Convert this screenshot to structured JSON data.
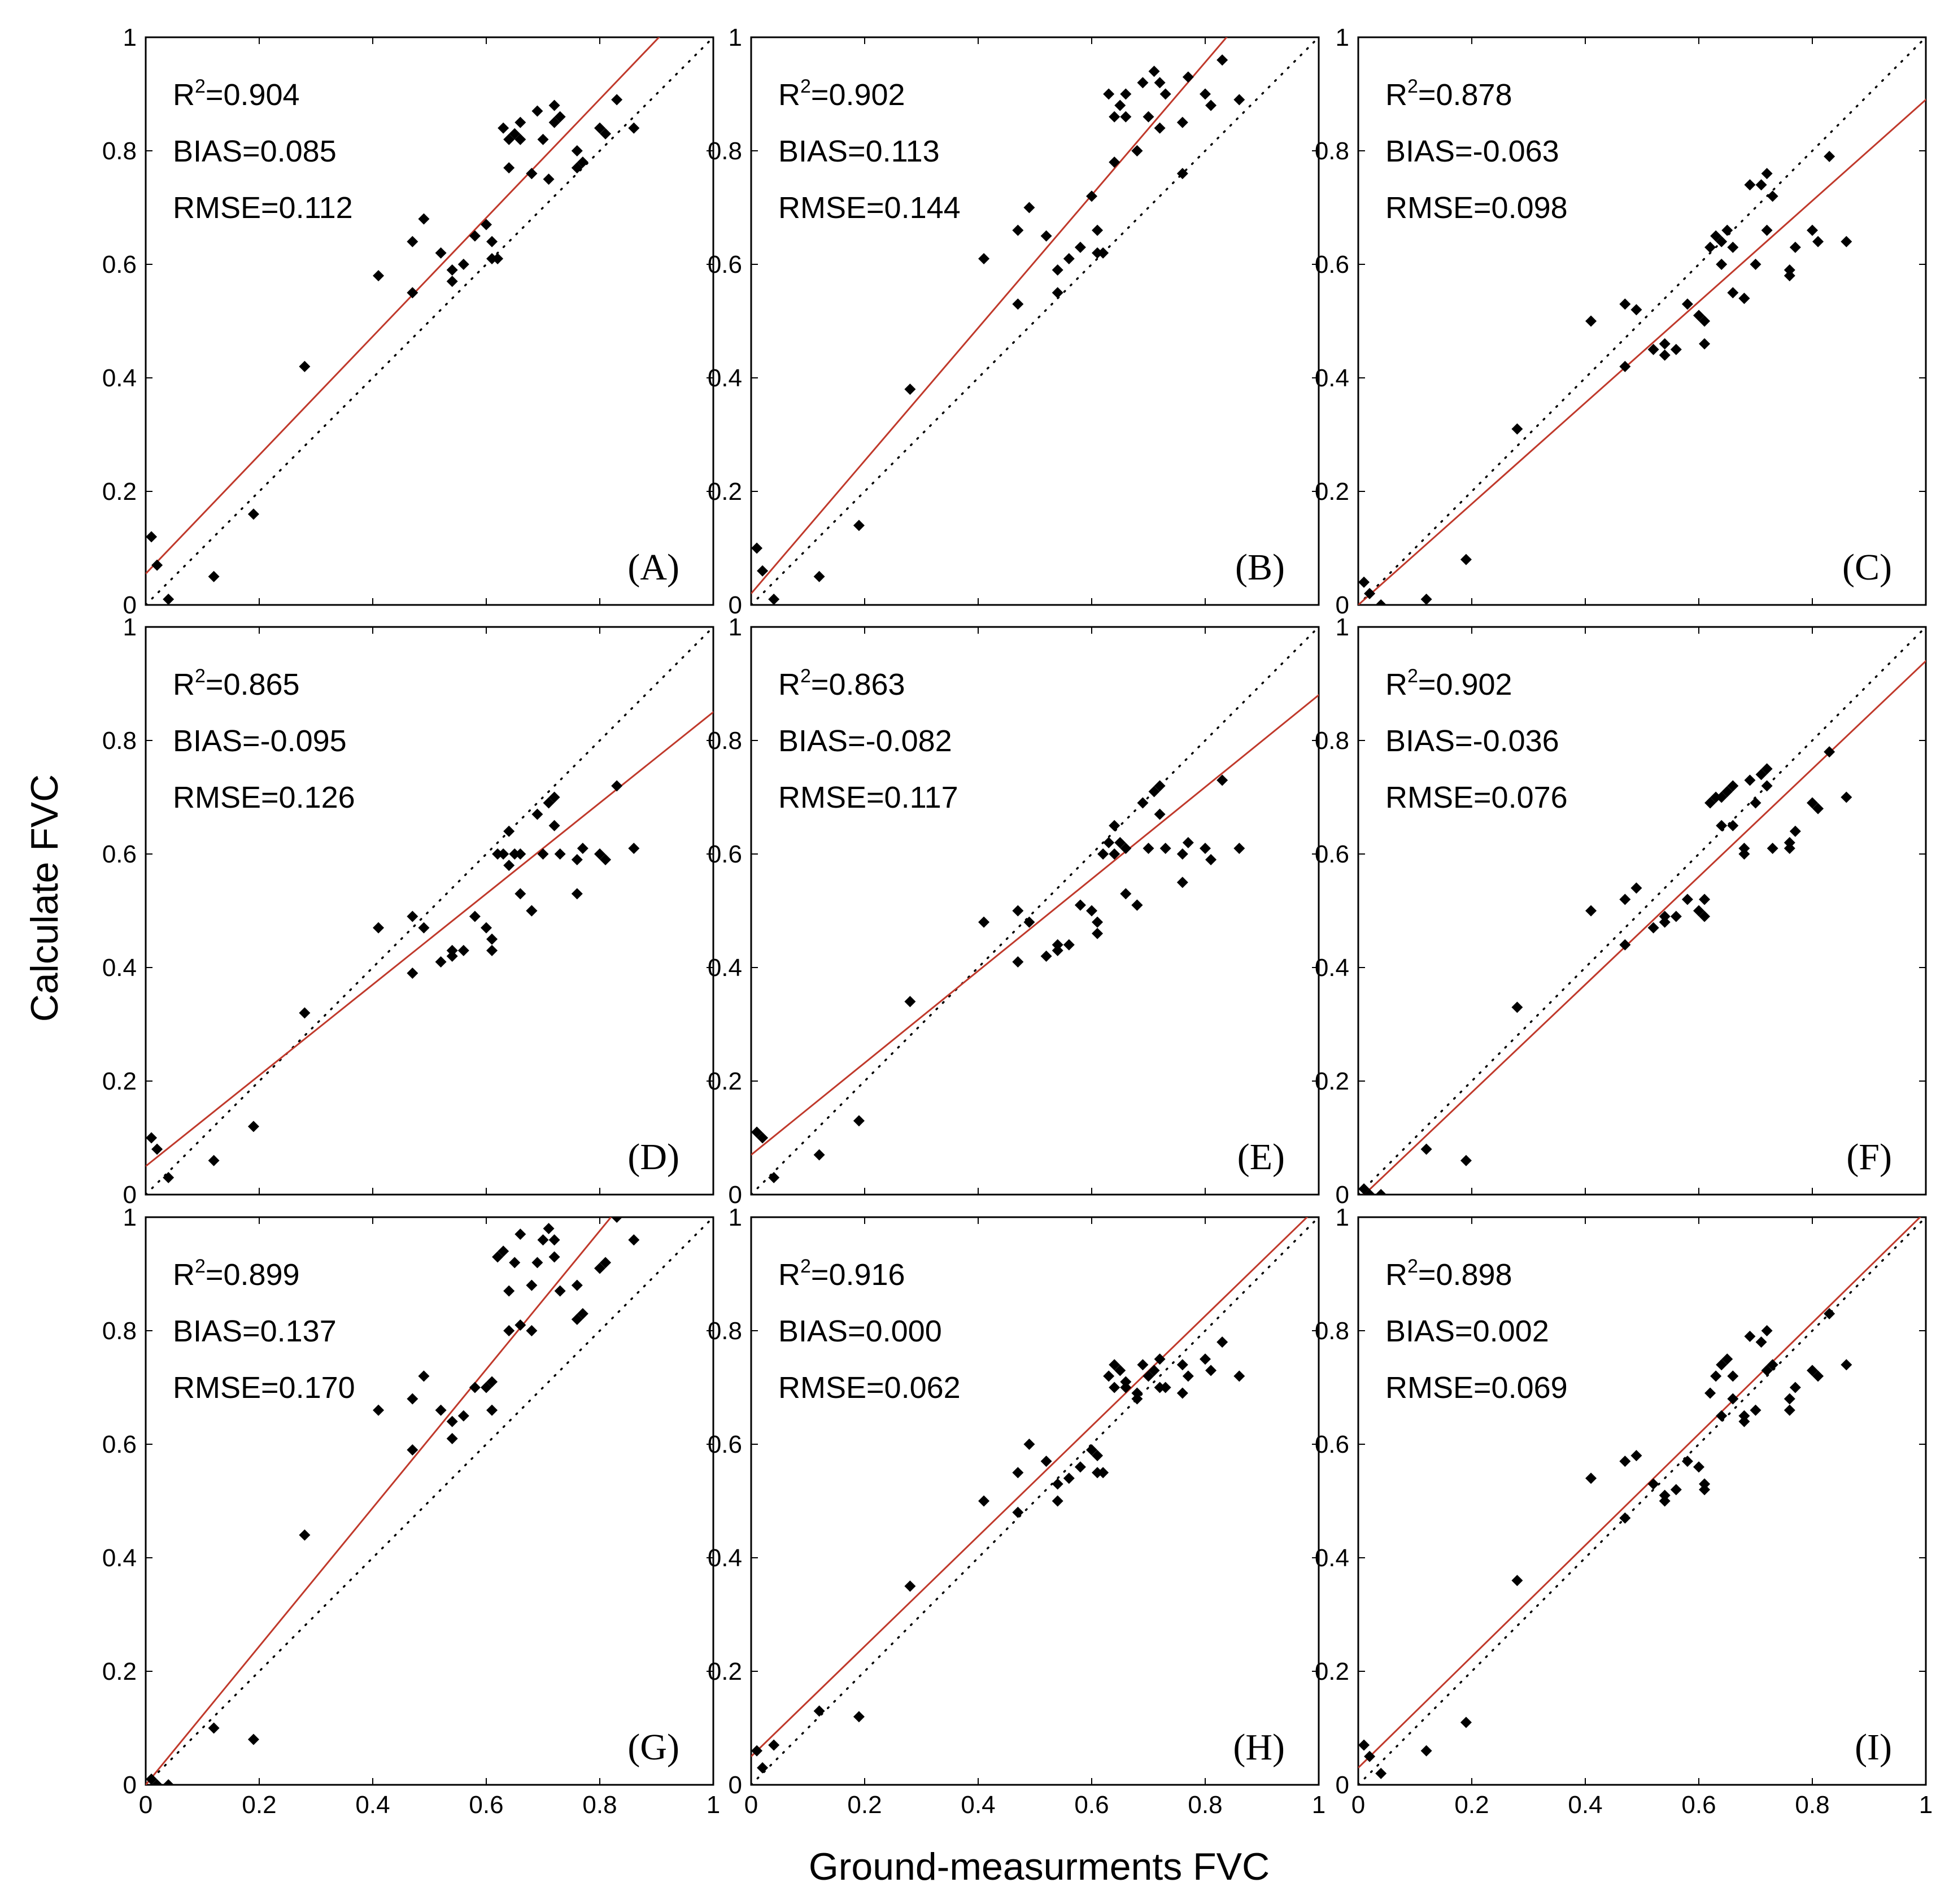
{
  "chart_data": {
    "type": "scatter",
    "layout": "3x3 grid",
    "xlabel": "Ground-measurments FVC",
    "ylabel": "Calculate FVC",
    "xlim": [
      0,
      1
    ],
    "ylim": [
      0,
      1
    ],
    "x_ticks": [
      "0",
      "0.2",
      "0.4",
      "0.6",
      "0.8",
      "1"
    ],
    "y_ticks": [
      "0",
      "0.2",
      "0.4",
      "0.6",
      "0.8",
      "1"
    ],
    "reference_line": "1:1 dotted",
    "fit_line_color": "#c0392b",
    "marker_color": "#000000",
    "ground_x": [
      0.01,
      0.02,
      0.04,
      0.12,
      0.19,
      0.28,
      0.41,
      0.47,
      0.47,
      0.49,
      0.52,
      0.54,
      0.54,
      0.56,
      0.58,
      0.6,
      0.61,
      0.61,
      0.62,
      0.63,
      0.64,
      0.64,
      0.65,
      0.66,
      0.66,
      0.68,
      0.68,
      0.69,
      0.7,
      0.71,
      0.72,
      0.72,
      0.73,
      0.76,
      0.76,
      0.77,
      0.8,
      0.81,
      0.83,
      0.86
    ],
    "panels": [
      {
        "label": "(A)",
        "r2_prefix": "R",
        "r2_sup": "2",
        "r2_value": "=0.904",
        "bias": "BIAS=0.085",
        "rmse": "RMSE=0.112",
        "fit": [
          0.055,
          1.045
        ],
        "y": [
          0.12,
          0.07,
          0.01,
          0.05,
          0.16,
          0.42,
          0.58,
          0.55,
          0.64,
          0.68,
          0.62,
          0.57,
          0.59,
          0.6,
          0.65,
          0.67,
          0.61,
          0.64,
          0.61,
          0.84,
          0.82,
          0.77,
          0.83,
          0.85,
          0.82,
          0.76,
          0.76,
          0.87,
          0.82,
          0.75,
          0.88,
          0.85,
          0.86,
          0.8,
          0.77,
          0.78,
          0.84,
          0.83,
          0.89,
          0.84
        ]
      },
      {
        "label": "(B)",
        "r2_prefix": "R",
        "r2_sup": "2",
        "r2_value": "=0.902",
        "bias": "BIAS=0.113",
        "rmse": "RMSE=0.144",
        "fit": [
          0.02,
          1.17
        ],
        "y": [
          0.1,
          0.06,
          0.01,
          0.05,
          0.14,
          0.38,
          0.61,
          0.53,
          0.66,
          0.7,
          0.65,
          0.55,
          0.59,
          0.61,
          0.63,
          0.72,
          0.62,
          0.66,
          0.62,
          0.9,
          0.86,
          0.78,
          0.88,
          0.9,
          0.86,
          0.8,
          0.8,
          0.92,
          0.86,
          0.94,
          0.92,
          0.84,
          0.9,
          0.85,
          0.76,
          0.93,
          0.9,
          0.88,
          0.96,
          0.89
        ]
      },
      {
        "label": "(C)",
        "r2_prefix": "R",
        "r2_sup": "2",
        "r2_value": "=0.878",
        "bias": "BIAS=-0.063",
        "rmse": "RMSE=0.098",
        "fit": [
          0.0,
          0.89
        ],
        "y": [
          0.04,
          0.02,
          0.0,
          0.01,
          0.08,
          0.31,
          0.5,
          0.42,
          0.53,
          0.52,
          0.45,
          0.44,
          0.46,
          0.45,
          0.53,
          0.51,
          0.5,
          0.46,
          0.63,
          0.65,
          0.64,
          0.6,
          0.66,
          0.63,
          0.55,
          0.54,
          0.54,
          0.74,
          0.6,
          0.74,
          0.76,
          0.66,
          0.72,
          0.59,
          0.58,
          0.63,
          0.66,
          0.64,
          0.79,
          0.64
        ]
      },
      {
        "label": "(D)",
        "r2_prefix": "R",
        "r2_sup": "2",
        "r2_value": "=0.865",
        "bias": "BIAS=-0.095",
        "rmse": "RMSE=0.126",
        "fit": [
          0.05,
          0.8
        ],
        "y": [
          0.1,
          0.08,
          0.03,
          0.06,
          0.12,
          0.32,
          0.47,
          0.39,
          0.49,
          0.47,
          0.41,
          0.42,
          0.43,
          0.43,
          0.49,
          0.47,
          0.43,
          0.45,
          0.6,
          0.6,
          0.64,
          0.58,
          0.6,
          0.6,
          0.53,
          0.5,
          0.5,
          0.67,
          0.6,
          0.69,
          0.7,
          0.65,
          0.6,
          0.59,
          0.53,
          0.61,
          0.6,
          0.59,
          0.72,
          0.61
        ]
      },
      {
        "label": "(E)",
        "r2_prefix": "R",
        "r2_sup": "2",
        "r2_value": "=0.863",
        "bias": "BIAS=-0.082",
        "rmse": "RMSE=0.117",
        "fit": [
          0.07,
          0.81
        ],
        "y": [
          0.11,
          0.1,
          0.03,
          0.07,
          0.13,
          0.34,
          0.48,
          0.41,
          0.5,
          0.48,
          0.42,
          0.43,
          0.44,
          0.44,
          0.51,
          0.5,
          0.46,
          0.48,
          0.6,
          0.62,
          0.65,
          0.6,
          0.62,
          0.61,
          0.53,
          0.51,
          0.51,
          0.69,
          0.61,
          0.71,
          0.72,
          0.67,
          0.61,
          0.6,
          0.55,
          0.62,
          0.61,
          0.59,
          0.73,
          0.61
        ]
      },
      {
        "label": "(F)",
        "r2_prefix": "R",
        "r2_sup": "2",
        "r2_value": "=0.902",
        "bias": "BIAS=-0.036",
        "rmse": "RMSE=0.076",
        "fit": [
          -0.01,
          0.95
        ],
        "y": [
          0.01,
          0.0,
          0.0,
          0.08,
          0.06,
          0.33,
          0.5,
          0.44,
          0.52,
          0.54,
          0.47,
          0.48,
          0.49,
          0.49,
          0.52,
          0.5,
          0.49,
          0.52,
          0.69,
          0.7,
          0.7,
          0.65,
          0.71,
          0.72,
          0.65,
          0.6,
          0.61,
          0.73,
          0.69,
          0.74,
          0.75,
          0.72,
          0.61,
          0.62,
          0.61,
          0.64,
          0.69,
          0.68,
          0.78,
          0.7
        ]
      },
      {
        "label": "(G)",
        "r2_prefix": "R",
        "r2_sup": "2",
        "r2_value": "=0.899",
        "bias": "BIAS=0.137",
        "rmse": "RMSE=0.170",
        "fit": [
          0.0,
          1.22
        ],
        "y": [
          0.01,
          0.0,
          0.0,
          0.1,
          0.08,
          0.44,
          0.66,
          0.59,
          0.68,
          0.72,
          0.66,
          0.61,
          0.64,
          0.65,
          0.7,
          0.7,
          0.66,
          0.71,
          0.93,
          0.94,
          0.87,
          0.8,
          0.92,
          0.97,
          0.81,
          0.8,
          0.88,
          0.92,
          0.96,
          0.98,
          0.96,
          0.93,
          0.87,
          0.88,
          0.82,
          0.83,
          0.91,
          0.92,
          1.0,
          0.96
        ]
      },
      {
        "label": "(H)",
        "r2_prefix": "R",
        "r2_sup": "2",
        "r2_value": "=0.916",
        "bias": "BIAS=0.000",
        "rmse": "RMSE=0.062",
        "fit": [
          0.05,
          0.97
        ],
        "y": [
          0.06,
          0.03,
          0.07,
          0.13,
          0.12,
          0.35,
          0.5,
          0.48,
          0.55,
          0.6,
          0.57,
          0.5,
          0.53,
          0.54,
          0.56,
          0.59,
          0.55,
          0.58,
          0.55,
          0.72,
          0.74,
          0.7,
          0.73,
          0.71,
          0.7,
          0.68,
          0.69,
          0.74,
          0.72,
          0.73,
          0.75,
          0.7,
          0.7,
          0.74,
          0.69,
          0.72,
          0.75,
          0.73,
          0.78,
          0.72
        ]
      },
      {
        "label": "(I)",
        "r2_prefix": "R",
        "r2_sup": "2",
        "r2_value": "=0.898",
        "bias": "BIAS=0.002",
        "rmse": "RMSE=0.069",
        "fit": [
          0.03,
          0.98
        ],
        "y": [
          0.07,
          0.05,
          0.02,
          0.06,
          0.11,
          0.36,
          0.54,
          0.47,
          0.57,
          0.58,
          0.53,
          0.5,
          0.51,
          0.52,
          0.57,
          0.56,
          0.52,
          0.53,
          0.69,
          0.72,
          0.74,
          0.65,
          0.75,
          0.72,
          0.68,
          0.64,
          0.65,
          0.79,
          0.66,
          0.78,
          0.8,
          0.73,
          0.74,
          0.68,
          0.66,
          0.7,
          0.73,
          0.72,
          0.83,
          0.74
        ]
      }
    ]
  }
}
